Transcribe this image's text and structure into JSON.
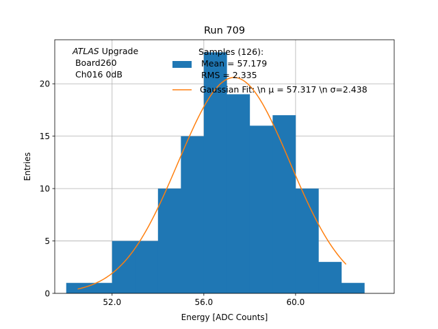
{
  "chart_data": {
    "type": "bar",
    "title": "Run 709",
    "xlabel": "Energy [ADC Counts]",
    "ylabel": "Entries",
    "xlim": [
      49.5,
      64.3
    ],
    "ylim": [
      0,
      24.2
    ],
    "grid": true,
    "x_ticks": [
      {
        "value": 52.0,
        "label": "52.0"
      },
      {
        "value": 56.0,
        "label": "56.0"
      },
      {
        "value": 60.0,
        "label": "60.0"
      }
    ],
    "y_ticks": [
      {
        "value": 0,
        "label": "0"
      },
      {
        "value": 5,
        "label": "5"
      },
      {
        "value": 10,
        "label": "10"
      },
      {
        "value": 15,
        "label": "15"
      },
      {
        "value": 20,
        "label": "20"
      }
    ],
    "series": [
      {
        "name": "Samples",
        "type": "histogram",
        "color": "#1f77b4",
        "bins": [
          {
            "x0": 50.0,
            "x1": 51.0,
            "count": 1
          },
          {
            "x0": 51.0,
            "x1": 52.0,
            "count": 1
          },
          {
            "x0": 52.0,
            "x1": 53.0,
            "count": 5
          },
          {
            "x0": 53.0,
            "x1": 54.0,
            "count": 5
          },
          {
            "x0": 54.0,
            "x1": 55.0,
            "count": 10
          },
          {
            "x0": 55.0,
            "x1": 56.0,
            "count": 15
          },
          {
            "x0": 56.0,
            "x1": 57.0,
            "count": 23
          },
          {
            "x0": 57.0,
            "x1": 58.0,
            "count": 19
          },
          {
            "x0": 58.0,
            "x1": 59.0,
            "count": 16
          },
          {
            "x0": 59.0,
            "x1": 60.0,
            "count": 17
          },
          {
            "x0": 60.0,
            "x1": 61.0,
            "count": 10
          },
          {
            "x0": 61.0,
            "x1": 62.0,
            "count": 3
          },
          {
            "x0": 62.0,
            "x1": 63.0,
            "count": 1
          }
        ]
      },
      {
        "name": "Gaussian Fit",
        "type": "line",
        "color": "#ff7f0e",
        "mu": 57.317,
        "sigma": 2.438,
        "amplitude": 20.6,
        "x_range": [
          50.5,
          62.2
        ]
      }
    ],
    "legend": {
      "position": "top-right",
      "entries": [
        {
          "series": "Samples",
          "lines": [
            "Samples (126):",
            " Mean = 57.179",
            " RMS = 2.335"
          ]
        },
        {
          "series": "Gaussian Fit",
          "lines": [
            "Gaussian Fit: \\n μ = 57.317 \\n σ=2.438"
          ]
        }
      ]
    },
    "annotation": {
      "italic": "ATLAS",
      "rest": " Upgrade",
      "lines": [
        " Board260",
        " Ch016 0dB"
      ]
    }
  }
}
